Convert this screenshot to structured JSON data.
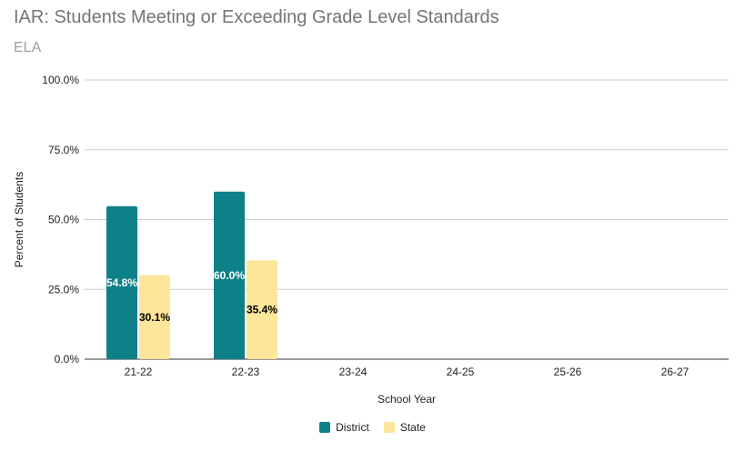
{
  "chart_data": {
    "type": "bar",
    "title": "IAR: Students Meeting or Exceeding Grade Level Standards",
    "subtitle": "ELA",
    "xlabel": "School Year",
    "ylabel": "Percent of Students",
    "ylim": [
      0,
      100
    ],
    "yticks": [
      "0.0%",
      "25.0%",
      "50.0%",
      "75.0%",
      "100.0%"
    ],
    "ytick_values": [
      0,
      25,
      50,
      75,
      100
    ],
    "categories": [
      "21-22",
      "22-23",
      "23-24",
      "24-25",
      "25-26",
      "26-27"
    ],
    "series": [
      {
        "name": "District",
        "color": "#0e8088",
        "label_color": "#ffffff",
        "values": [
          54.8,
          60.0,
          null,
          null,
          null,
          null
        ],
        "labels": [
          "54.8%",
          "60.0%",
          "",
          "",
          "",
          ""
        ]
      },
      {
        "name": "State",
        "color": "#fde599",
        "label_color": "#000000",
        "values": [
          30.1,
          35.4,
          null,
          null,
          null,
          null
        ],
        "labels": [
          "30.1%",
          "35.4%",
          "",
          "",
          "",
          ""
        ]
      }
    ],
    "grid": true,
    "legend_position": "bottom"
  }
}
